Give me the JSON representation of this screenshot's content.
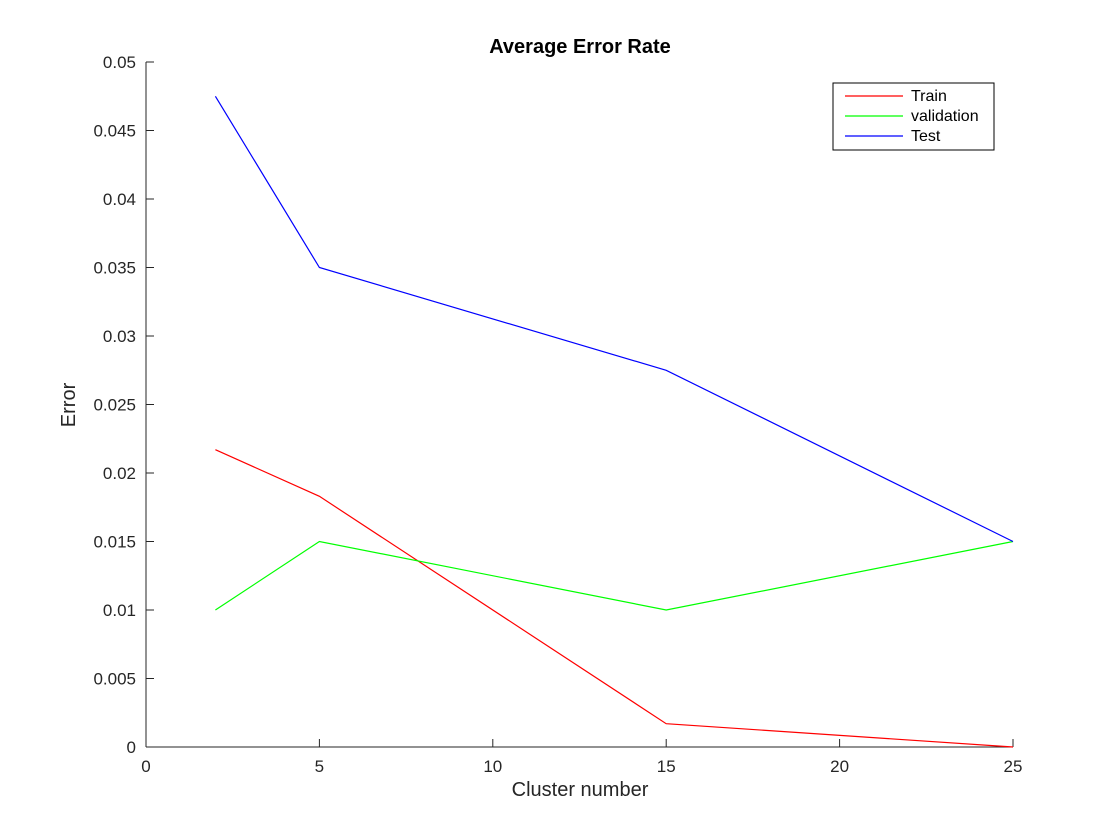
{
  "chart_data": {
    "type": "line",
    "title": "Average Error Rate",
    "xlabel": "Cluster number",
    "ylabel": "Error",
    "xlim": [
      0,
      25
    ],
    "ylim": [
      0,
      0.05
    ],
    "xticks": [
      0,
      5,
      10,
      15,
      20,
      25
    ],
    "xtick_labels": [
      "0",
      "5",
      "10",
      "15",
      "20",
      "25"
    ],
    "yticks": [
      0,
      0.005,
      0.01,
      0.015,
      0.02,
      0.025,
      0.03,
      0.035,
      0.04,
      0.045,
      0.05
    ],
    "ytick_labels": [
      "0",
      "0.005",
      "0.01",
      "0.015",
      "0.02",
      "0.025",
      "0.03",
      "0.035",
      "0.04",
      "0.045",
      "0.05"
    ],
    "grid": false,
    "legend_position": "top-right",
    "x": [
      2,
      5,
      15,
      25
    ],
    "series": [
      {
        "name": "Train",
        "color": "#ff0000",
        "values": [
          0.0217,
          0.0183,
          0.0017,
          0.0
        ]
      },
      {
        "name": "validation",
        "color": "#00ff00",
        "values": [
          0.01,
          0.015,
          0.01,
          0.015
        ]
      },
      {
        "name": "Test",
        "color": "#0000ff",
        "values": [
          0.0475,
          0.035,
          0.0275,
          0.015
        ]
      }
    ]
  }
}
